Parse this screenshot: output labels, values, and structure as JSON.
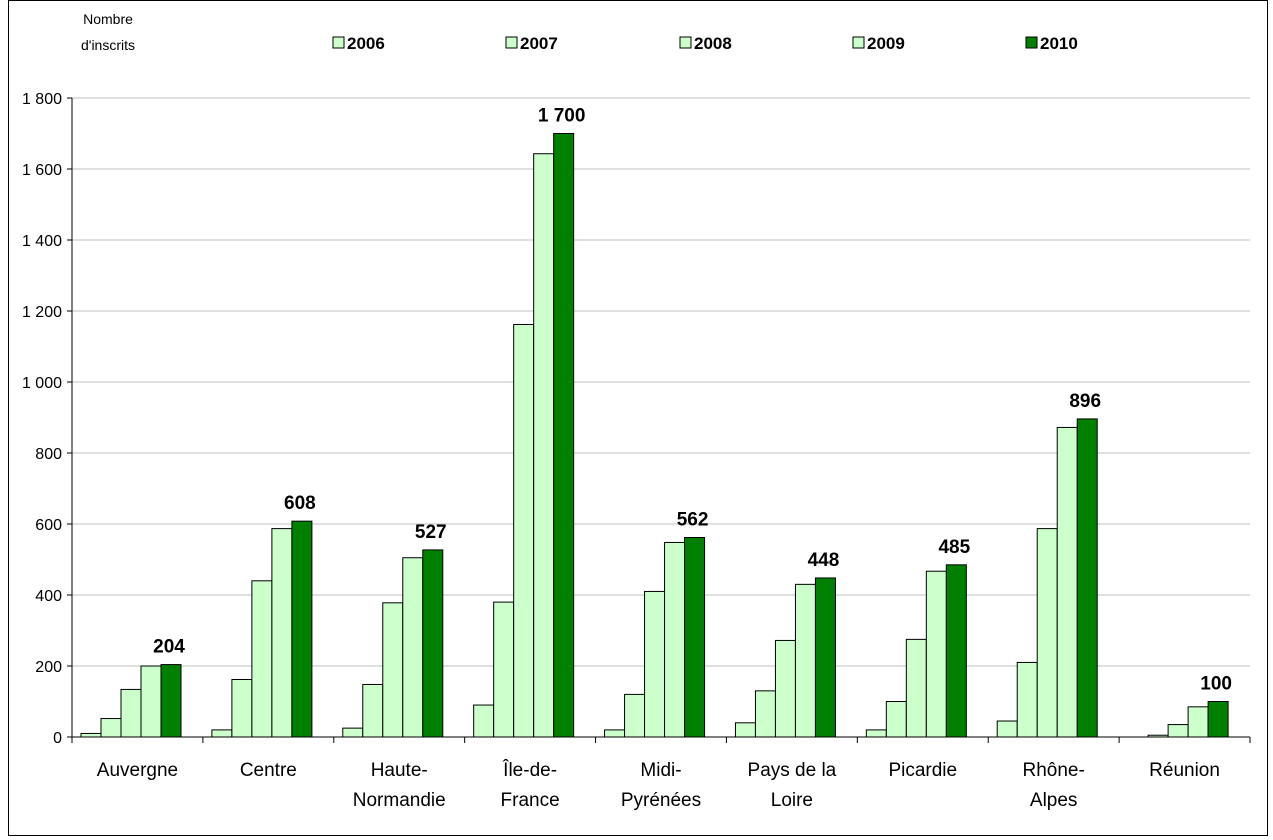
{
  "chart_data": {
    "type": "bar",
    "title": "",
    "ylabel_lines": [
      "Nombre",
      "d'inscrits"
    ],
    "xlabel": "",
    "ylim": [
      0,
      1800
    ],
    "yticks": [
      0,
      200,
      400,
      600,
      800,
      1000,
      1200,
      1400,
      1600,
      1800
    ],
    "ytick_labels": [
      "0",
      "200",
      "400",
      "600",
      "800",
      "1 000",
      "1 200",
      "1 400",
      "1 600",
      "1 800"
    ],
    "grid": true,
    "legend_position": "top",
    "categories": [
      [
        "Auvergne"
      ],
      [
        "Centre"
      ],
      [
        "Haute-",
        "Normandie"
      ],
      [
        "Île-de-",
        "France"
      ],
      [
        "Midi-",
        "Pyrénées"
      ],
      [
        "Pays de la",
        "Loire"
      ],
      [
        "Picardie"
      ],
      [
        "Rhône-",
        "Alpes"
      ],
      [
        "Réunion"
      ]
    ],
    "series": [
      {
        "name": "2006",
        "color": "#ccffcc",
        "values": [
          10,
          20,
          25,
          90,
          20,
          40,
          20,
          45,
          0
        ]
      },
      {
        "name": "2007",
        "color": "#ccffcc",
        "values": [
          52,
          162,
          148,
          380,
          120,
          130,
          100,
          210,
          5
        ]
      },
      {
        "name": "2008",
        "color": "#ccffcc",
        "values": [
          134,
          440,
          378,
          1162,
          410,
          272,
          275,
          587,
          35
        ]
      },
      {
        "name": "2009",
        "color": "#ccffcc",
        "values": [
          200,
          587,
          505,
          1643,
          548,
          430,
          467,
          872,
          85
        ]
      },
      {
        "name": "2010",
        "color": "#008000",
        "values": [
          204,
          608,
          527,
          1700,
          562,
          448,
          485,
          896,
          100
        ]
      }
    ],
    "data_labels": [
      "204",
      "608",
      "527",
      "1 700",
      "562",
      "448",
      "485",
      "896",
      "100"
    ]
  }
}
